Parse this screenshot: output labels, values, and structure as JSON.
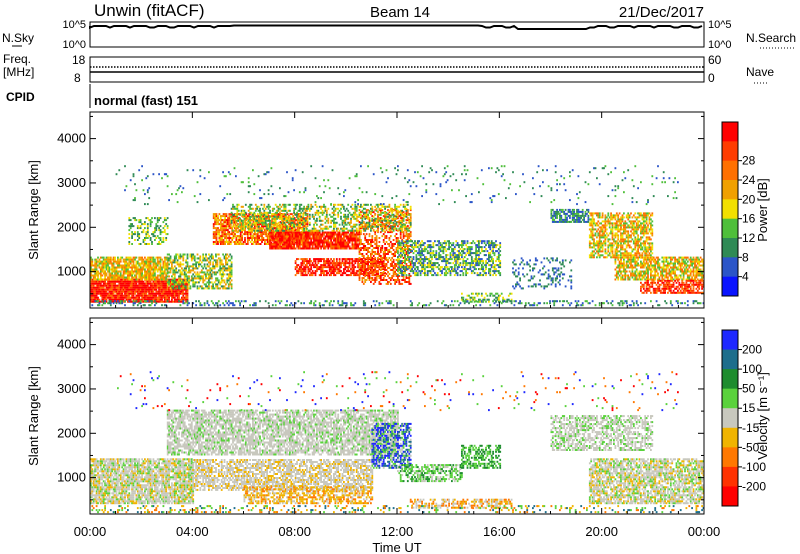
{
  "header": {
    "radar": "Unwin (fitACF)",
    "beam": "Beam 14",
    "date": "21/Dec/2017"
  },
  "sky_panel": {
    "left_label": "N.Sky",
    "right_label": "N.Search",
    "tick_top": "10^5",
    "tick_bottom": "10^0"
  },
  "freq_panel": {
    "left_label_1": "Freq.",
    "left_label_2": "[MHz]",
    "right_label": "Nave",
    "left_ticks": [
      "18",
      "8"
    ],
    "right_ticks": [
      "60",
      "0"
    ]
  },
  "cpid": {
    "label": "CPID",
    "value": "normal (fast) 151"
  },
  "chart_data": [
    {
      "type": "heatmap",
      "quantity": "Power",
      "ylabel": "Slant Range [km]",
      "xlabel": "",
      "ylim": [
        180,
        4600
      ],
      "y_ticks": [
        1000,
        2000,
        3000,
        4000
      ],
      "colorbar_label": "Power [dB]",
      "colorbar_ticks": [
        "4",
        "8",
        "12",
        "16",
        "20",
        "24",
        "28"
      ],
      "colorbar_colors": [
        "#0a14ff",
        "#2b55c8",
        "#2f8a55",
        "#4fbf3a",
        "#f2e000",
        "#f0a000",
        "#ff7000",
        "#ff3c00",
        "#ff0000"
      ]
    },
    {
      "type": "heatmap",
      "quantity": "Velocity",
      "ylabel": "Slant Range [km]",
      "xlabel": "Time UT",
      "ylim": [
        180,
        4600
      ],
      "y_ticks": [
        1000,
        2000,
        3000,
        4000
      ],
      "x_ticks": [
        "00:00",
        "04:00",
        "08:00",
        "12:00",
        "16:00",
        "20:00",
        "00:00"
      ],
      "colorbar_label": "Velocity [m s⁻¹]",
      "colorbar_ticks": [
        "200",
        "100",
        "50",
        "15",
        "-15",
        "-50",
        "-100",
        "-200"
      ],
      "colorbar_colors": [
        "#1e28ff",
        "#1e6e8c",
        "#1e8c2e",
        "#5ad23c",
        "#c8c8be",
        "#f0b400",
        "#ff7800",
        "#ff3200",
        "#ff0000"
      ]
    }
  ]
}
